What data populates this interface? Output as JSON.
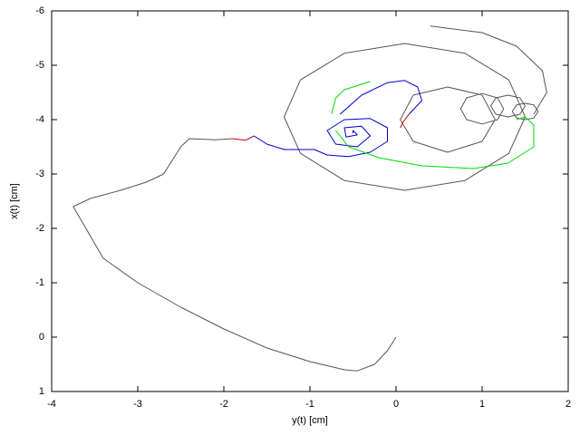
{
  "chart_data": {
    "type": "line",
    "xlabel": "y(t) [cm]",
    "ylabel": "x(t) [cm]",
    "xlim": [
      -4,
      2
    ],
    "ylim": [
      1,
      -6
    ],
    "xticks": [
      -4,
      -3,
      -2,
      -1,
      0,
      1,
      2
    ],
    "yticks": [
      1,
      0,
      -1,
      -2,
      -3,
      -4,
      -5,
      -6
    ],
    "series": [
      {
        "color": "#555555",
        "x": [
          0,
          -0.1,
          -0.25,
          -0.45,
          -0.6,
          -1.0,
          -1.5,
          -2.0,
          -2.5,
          -3.0,
          -3.4,
          -3.75,
          -3.55,
          -3.2,
          -2.9,
          -2.7,
          -2.6,
          -2.5,
          -2.4,
          -2.1,
          -1.9,
          null,
          1.5,
          1.31,
          0.8,
          0.1,
          -0.6,
          -1.11,
          -1.3,
          -1.11,
          -0.6,
          0.1,
          0.8,
          1.31,
          1.5,
          null,
          0.4,
          1.0,
          1.4,
          1.7,
          1.75,
          1.6,
          null,
          1.15,
          1.0,
          0.6,
          0.2,
          0.05,
          0.2,
          0.6,
          1.0,
          1.15,
          null,
          1.25,
          1.18,
          1.0,
          0.82,
          0.75,
          0.82,
          1.0,
          1.18,
          1.25,
          null,
          1.5,
          1.44,
          1.3,
          1.16,
          1.1,
          1.16,
          1.3,
          1.44,
          1.5,
          null,
          1.65,
          1.6,
          1.5,
          1.4,
          1.35,
          1.4,
          1.5,
          1.6,
          1.65
        ],
        "values": [
          0,
          0.25,
          0.5,
          0.62,
          0.6,
          0.45,
          0.2,
          -0.15,
          -0.55,
          -1.0,
          -1.45,
          -2.4,
          -2.55,
          -2.7,
          -2.85,
          -3.0,
          -3.25,
          -3.5,
          -3.65,
          -3.63,
          -3.65,
          null,
          -4.05,
          -4.73,
          -5.22,
          -5.4,
          -5.22,
          -4.73,
          -4.05,
          -3.38,
          -2.88,
          -2.7,
          -2.88,
          -3.38,
          -4.05,
          null,
          -5.72,
          -5.6,
          -5.35,
          -4.9,
          -4.5,
          -4.1,
          null,
          -4.0,
          -4.45,
          -4.6,
          -4.45,
          -4.0,
          -3.6,
          -3.4,
          -3.6,
          -4.0,
          null,
          -4.2,
          -4.4,
          -4.48,
          -4.4,
          -4.2,
          -4.0,
          -3.92,
          -4.0,
          -4.2,
          null,
          -4.25,
          -4.4,
          -4.45,
          -4.4,
          -4.25,
          -4.1,
          -4.05,
          -4.1,
          -4.25,
          null,
          -4.15,
          -4.27,
          -4.3,
          -4.27,
          -4.15,
          -4.03,
          -4.0,
          -4.03,
          -4.15
        ]
      },
      {
        "color": "#cc0000",
        "x": [
          -1.9,
          -1.75,
          -1.65,
          null,
          0.15,
          0.08,
          0.05
        ],
        "values": [
          -3.65,
          -3.62,
          -3.7,
          null,
          -4.1,
          -3.95,
          -3.85
        ]
      },
      {
        "color": "#0000cc",
        "x": [
          -1.65,
          -1.5,
          -1.3,
          -1.1,
          -0.95,
          -0.8,
          -0.55,
          -0.3,
          -0.1,
          -0.1,
          -0.3,
          -0.6,
          -0.8,
          -0.7,
          -0.45,
          -0.3,
          -0.4,
          -0.6,
          -0.58,
          -0.45,
          -0.5,
          -0.5,
          null,
          -0.65,
          -0.4,
          -0.1,
          0.1,
          0.25,
          0.3,
          0.15
        ],
        "values": [
          -3.7,
          -3.55,
          -3.45,
          -3.45,
          -3.45,
          -3.35,
          -3.32,
          -3.4,
          -3.6,
          -3.85,
          -4.02,
          -4.0,
          -3.8,
          -3.55,
          -3.5,
          -3.7,
          -3.88,
          -3.85,
          -3.68,
          -3.72,
          -3.8,
          -3.75,
          null,
          -4.1,
          -4.45,
          -4.68,
          -4.72,
          -4.6,
          -4.35,
          -4.1
        ]
      },
      {
        "color": "#00dd00",
        "x": [
          -0.75,
          -0.7,
          -0.6,
          -0.4,
          -0.3,
          null,
          -0.7,
          -0.55,
          -0.2,
          0.3,
          0.9,
          1.3,
          1.6,
          1.6,
          1.5,
          1.4
        ],
        "values": [
          -4.1,
          -4.4,
          -4.55,
          -4.65,
          -4.7,
          null,
          -3.8,
          -3.5,
          -3.3,
          -3.15,
          -3.1,
          -3.2,
          -3.5,
          -3.9,
          -4.05,
          -4.0
        ]
      }
    ]
  }
}
